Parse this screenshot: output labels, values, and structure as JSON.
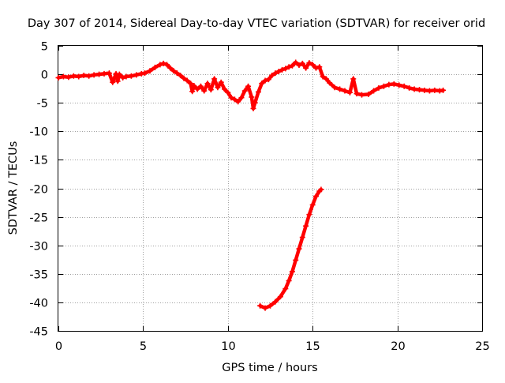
{
  "chart_data": {
    "type": "scatter",
    "title": "Day 307 of 2014, Sidereal Day-to-day VTEC variation (SDTVAR) for receiver orid",
    "xlabel": "GPS time / hours",
    "ylabel": "SDTVAR / TECUs",
    "xlim": [
      0,
      25
    ],
    "ylim": [
      -45,
      5
    ],
    "xticks": [
      0,
      5,
      10,
      15,
      20,
      25
    ],
    "yticks": [
      5,
      0,
      -5,
      -10,
      -15,
      -20,
      -25,
      -30,
      -35,
      -40,
      -45
    ],
    "grid": true,
    "legend": "none",
    "marker": "+",
    "series": [
      {
        "name": "SDTVAR",
        "color": "#ff0000",
        "points": [
          [
            0.0,
            -0.6
          ],
          [
            0.3,
            -0.4
          ],
          [
            0.6,
            -0.5
          ],
          [
            0.9,
            -0.3
          ],
          [
            1.2,
            -0.4
          ],
          [
            1.5,
            -0.2
          ],
          [
            1.8,
            -0.3
          ],
          [
            2.1,
            -0.1
          ],
          [
            2.4,
            0.0
          ],
          [
            2.7,
            0.1
          ],
          [
            3.0,
            0.2
          ],
          [
            3.2,
            -1.4
          ],
          [
            3.4,
            0.1
          ],
          [
            3.5,
            -1.2
          ],
          [
            3.6,
            0.0
          ],
          [
            3.8,
            -0.6
          ],
          [
            4.0,
            -0.4
          ],
          [
            4.3,
            -0.3
          ],
          [
            4.6,
            -0.1
          ],
          [
            4.9,
            0.1
          ],
          [
            5.1,
            0.2
          ],
          [
            5.4,
            0.6
          ],
          [
            5.7,
            1.2
          ],
          [
            6.0,
            1.7
          ],
          [
            6.2,
            1.9
          ],
          [
            6.4,
            1.7
          ],
          [
            6.6,
            1.1
          ],
          [
            6.8,
            0.6
          ],
          [
            7.0,
            0.2
          ],
          [
            7.2,
            -0.2
          ],
          [
            7.4,
            -0.7
          ],
          [
            7.6,
            -1.1
          ],
          [
            7.8,
            -1.6
          ],
          [
            7.9,
            -3.0
          ],
          [
            8.0,
            -2.0
          ],
          [
            8.2,
            -2.6
          ],
          [
            8.4,
            -2.1
          ],
          [
            8.6,
            -2.9
          ],
          [
            8.8,
            -1.6
          ],
          [
            9.0,
            -2.7
          ],
          [
            9.2,
            -0.8
          ],
          [
            9.4,
            -2.3
          ],
          [
            9.6,
            -1.4
          ],
          [
            9.8,
            -2.6
          ],
          [
            10.0,
            -3.2
          ],
          [
            10.2,
            -4.1
          ],
          [
            10.4,
            -4.4
          ],
          [
            10.6,
            -4.8
          ],
          [
            10.8,
            -4.1
          ],
          [
            11.0,
            -2.9
          ],
          [
            11.2,
            -2.1
          ],
          [
            11.4,
            -4.0
          ],
          [
            11.5,
            -6.0
          ],
          [
            11.6,
            -5.0
          ],
          [
            11.8,
            -3.1
          ],
          [
            12.0,
            -1.6
          ],
          [
            12.2,
            -1.1
          ],
          [
            12.4,
            -0.9
          ],
          [
            12.6,
            -0.2
          ],
          [
            12.8,
            0.2
          ],
          [
            13.0,
            0.5
          ],
          [
            13.2,
            0.8
          ],
          [
            13.4,
            1.0
          ],
          [
            13.6,
            1.3
          ],
          [
            13.8,
            1.5
          ],
          [
            14.0,
            2.1
          ],
          [
            14.2,
            1.6
          ],
          [
            14.4,
            1.9
          ],
          [
            14.6,
            1.1
          ],
          [
            14.8,
            2.0
          ],
          [
            15.0,
            1.7
          ],
          [
            15.2,
            1.1
          ],
          [
            15.4,
            1.3
          ],
          [
            15.6,
            -0.4
          ],
          [
            15.8,
            -0.8
          ],
          [
            16.0,
            -1.5
          ],
          [
            16.3,
            -2.3
          ],
          [
            16.6,
            -2.6
          ],
          [
            16.9,
            -2.9
          ],
          [
            17.2,
            -3.2
          ],
          [
            17.4,
            -0.8
          ],
          [
            17.6,
            -3.4
          ],
          [
            17.9,
            -3.6
          ],
          [
            18.3,
            -3.5
          ],
          [
            18.6,
            -2.9
          ],
          [
            18.9,
            -2.4
          ],
          [
            19.2,
            -2.1
          ],
          [
            19.5,
            -1.8
          ],
          [
            19.8,
            -1.7
          ],
          [
            20.1,
            -1.9
          ],
          [
            20.4,
            -2.1
          ],
          [
            20.7,
            -2.4
          ],
          [
            21.0,
            -2.6
          ],
          [
            21.3,
            -2.7
          ],
          [
            21.6,
            -2.8
          ],
          [
            21.9,
            -2.9
          ],
          [
            22.2,
            -2.8
          ],
          [
            22.5,
            -2.9
          ],
          [
            22.7,
            -2.8
          ],
          [
            11.9,
            -40.6
          ],
          [
            12.2,
            -41.0
          ],
          [
            12.5,
            -40.6
          ],
          [
            12.8,
            -39.9
          ],
          [
            13.1,
            -39.0
          ],
          [
            13.4,
            -37.6
          ],
          [
            13.6,
            -36.2
          ],
          [
            13.8,
            -34.6
          ],
          [
            14.0,
            -32.6
          ],
          [
            14.2,
            -30.6
          ],
          [
            14.4,
            -28.6
          ],
          [
            14.6,
            -26.6
          ],
          [
            14.8,
            -24.6
          ],
          [
            15.0,
            -22.9
          ],
          [
            15.2,
            -21.4
          ],
          [
            15.4,
            -20.5
          ],
          [
            15.5,
            -20.2
          ]
        ]
      }
    ]
  }
}
